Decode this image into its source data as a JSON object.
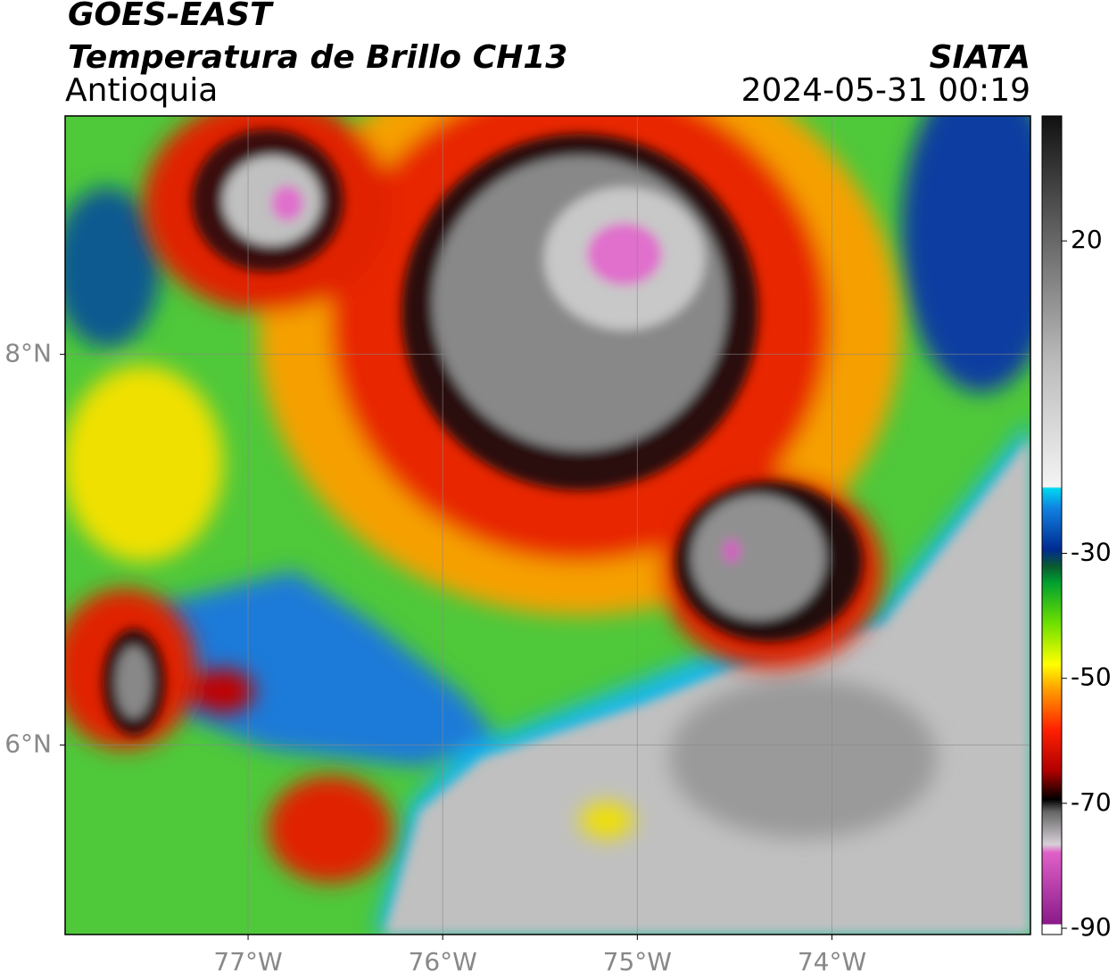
{
  "header": {
    "title": "GOES-EAST",
    "subtitle": "Temperatura de Brillo CH13",
    "region": "Antioquia",
    "source": "SIATA",
    "datetime": "2024-05-31 00:19"
  },
  "map": {
    "xlim": [
      -77.94,
      -72.98
    ],
    "ylim": [
      5.03,
      9.22
    ],
    "xticks": [
      {
        "value": -77,
        "label": "77°W"
      },
      {
        "value": -76,
        "label": "76°W"
      },
      {
        "value": -75,
        "label": "75°W"
      },
      {
        "value": -74,
        "label": "74°W"
      }
    ],
    "yticks": [
      {
        "value": 6,
        "label": "6°N"
      },
      {
        "value": 8,
        "label": "8°N"
      }
    ],
    "grid": true,
    "colorbar": {
      "lim": [
        -91,
        40
      ],
      "ticks": [
        20,
        -30,
        -50,
        -70,
        -90
      ]
    }
  }
}
